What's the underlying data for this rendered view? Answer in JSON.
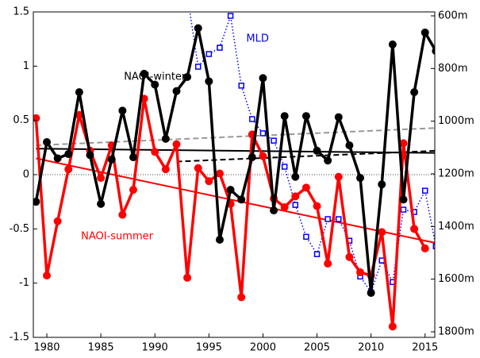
{
  "chart_data": {
    "type": "line",
    "x": [
      1979,
      1980,
      1981,
      1982,
      1983,
      1984,
      1985,
      1986,
      1987,
      1988,
      1989,
      1990,
      1991,
      1992,
      1993,
      1994,
      1995,
      1996,
      1997,
      1998,
      1999,
      2000,
      2001,
      2002,
      2003,
      2004,
      2005,
      2006,
      2007,
      2008,
      2009,
      2010,
      2011,
      2012,
      2013,
      2014,
      2015,
      2016
    ],
    "series": [
      {
        "name": "NAOI-winter",
        "color": "#000000",
        "marker": "circle",
        "style": "solid",
        "values": [
          -0.25,
          0.3,
          0.15,
          0.19,
          0.76,
          0.18,
          -0.27,
          0.14,
          0.59,
          0.16,
          0.93,
          0.83,
          0.33,
          0.77,
          0.9,
          1.35,
          0.86,
          -0.6,
          -0.14,
          -0.23,
          0.16,
          0.89,
          -0.33,
          0.54,
          -0.02,
          0.54,
          0.22,
          0.13,
          0.53,
          0.27,
          -0.03,
          -1.09,
          -0.09,
          1.2,
          -0.23,
          0.76,
          1.31,
          1.14
        ]
      },
      {
        "name": "NAOI-summer",
        "color": "#ff0000",
        "marker": "circle",
        "style": "solid",
        "values": [
          0.52,
          -0.93,
          -0.43,
          0.05,
          0.55,
          0.22,
          -0.03,
          0.27,
          -0.37,
          -0.14,
          0.7,
          0.21,
          0.05,
          0.28,
          -0.95,
          0.06,
          -0.06,
          0.01,
          -0.27,
          -1.13,
          0.37,
          0.17,
          -0.22,
          -0.3,
          -0.2,
          -0.12,
          -0.29,
          -0.82,
          -0.02,
          -0.76,
          -0.9,
          -0.93,
          -0.53,
          -1.4,
          0.29,
          -0.5,
          -0.68,
          null
        ]
      },
      {
        "name": "MLD",
        "color": "#0000ff",
        "marker": "square",
        "style": "dotted",
        "axis": "y2",
        "values": [
          null,
          null,
          null,
          null,
          null,
          null,
          null,
          null,
          null,
          null,
          null,
          null,
          null,
          null,
          520,
          793,
          745,
          721,
          600,
          865,
          992,
          1046,
          1074,
          1173,
          1318,
          1439,
          1505,
          1372,
          1372,
          1454,
          1590,
          1650,
          1529,
          1611,
          1336,
          1345,
          1264,
          1475
        ]
      }
    ],
    "trends": [
      {
        "color": "#000000",
        "style": "solid",
        "x": [
          1979,
          2016
        ],
        "values": [
          0.24,
          0.2
        ]
      },
      {
        "color": "#ff0000",
        "style": "solid",
        "x": [
          1979,
          2016
        ],
        "values": [
          0.15,
          -0.63
        ]
      },
      {
        "color": "#999999",
        "style": "dashed",
        "x": [
          1979,
          2016
        ],
        "values": [
          0.27,
          0.43
        ]
      },
      {
        "color": "#000000",
        "style": "dashed",
        "x": [
          1992,
          2016
        ],
        "values": [
          0.12,
          0.22
        ]
      }
    ],
    "annotations": [
      {
        "text": "NAOI-winter",
        "color": "#000000",
        "x": 1990,
        "y": 0.9
      },
      {
        "text": "NAOI-summer",
        "color": "#ff0000",
        "x": 1986.5,
        "y": -0.57
      },
      {
        "text": "MLD",
        "color": "#0000ff",
        "x": 1999.5,
        "y": 1.25
      }
    ],
    "zero_line": true,
    "xlim": [
      1978.75,
      2015.9
    ],
    "xticks": [
      1980,
      1985,
      1990,
      1995,
      2000,
      2005,
      2010,
      2015
    ],
    "ylim": [
      -1.5,
      1.5
    ],
    "yticks": [
      -1.5,
      -1,
      -0.5,
      0,
      0.5,
      1,
      1.5
    ],
    "y2lim": [
      1821,
      585
    ],
    "y2ticks": [
      {
        "value": 600,
        "label": "600m"
      },
      {
        "value": 800,
        "label": "800m"
      },
      {
        "value": 1000,
        "label": "1000m"
      },
      {
        "value": 1200,
        "label": "1200m"
      },
      {
        "value": 1400,
        "label": "1400m"
      },
      {
        "value": 1600,
        "label": "1600m"
      },
      {
        "value": 1800,
        "label": "1800m"
      }
    ]
  }
}
